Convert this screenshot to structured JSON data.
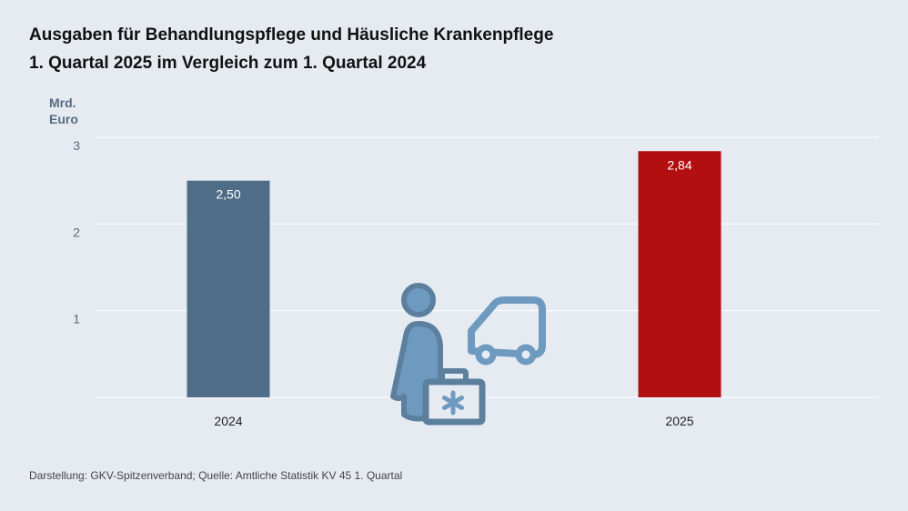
{
  "title": {
    "line1": "Ausgaben für Behandlungspflege und Häusliche Krankenpflege",
    "line2": "1. Quartal 2025 im Vergleich zum 1. Quartal 2024"
  },
  "unit_label": {
    "line1": "Mrd.",
    "line2": "Euro"
  },
  "source": "Darstellung: GKV-Spitzenverband; Quelle: Amtliche Statistik KV 45 1. Quartal",
  "icon": "nurse-with-medical-bag-and-car-icon",
  "colors": {
    "background": "#e6ebf2",
    "bar_2024": "#506d87",
    "bar_2025": "#b21010",
    "icon": "#6f9ac0",
    "icon_dark": "#5d7f9e"
  },
  "chart_data": {
    "type": "bar",
    "categories": [
      "2024",
      "2025"
    ],
    "values": [
      2.5,
      2.84
    ],
    "value_labels": [
      "2,50",
      "2,84"
    ],
    "ylim": [
      0,
      3
    ],
    "yticks": [
      1,
      2,
      3
    ],
    "ylabel": "Mrd. Euro",
    "xlabel": "",
    "grid": true,
    "title": "Ausgaben für Behandlungspflege und Häusliche Krankenpflege"
  }
}
